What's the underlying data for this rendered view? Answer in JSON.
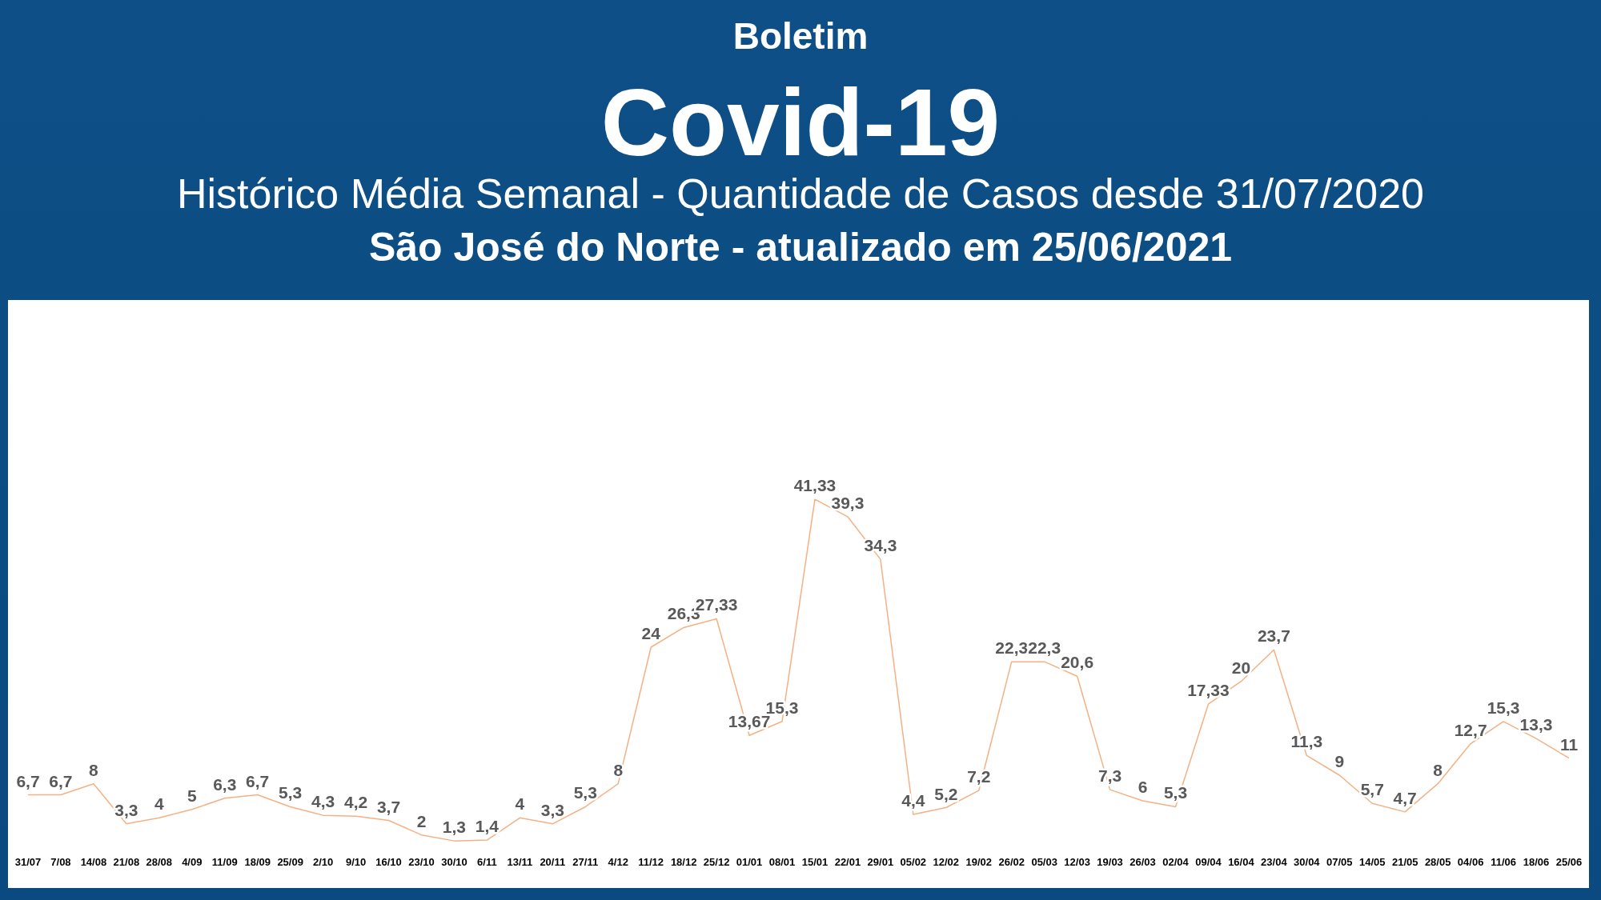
{
  "chart_data": {
    "type": "line",
    "title": "Covid-19",
    "subtitle": "Histórico Média Semanal - Quantidade de Casos desde 31/07/2020",
    "annotations": [
      "Boletim",
      "São José do Norte - atualizado em 25/06/2021"
    ],
    "categories": [
      "31/07",
      "7/08",
      "14/08",
      "21/08",
      "28/08",
      "4/09",
      "11/09",
      "18/09",
      "25/09",
      "2/10",
      "9/10",
      "16/10",
      "23/10",
      "30/10",
      "6/11",
      "13/11",
      "20/11",
      "27/11",
      "4/12",
      "11/12",
      "18/12",
      "25/12",
      "01/01",
      "08/01",
      "15/01",
      "22/01",
      "29/01",
      "05/02",
      "12/02",
      "19/02",
      "26/02",
      "05/03",
      "12/03",
      "19/03",
      "26/03",
      "02/04",
      "09/04",
      "16/04",
      "23/04",
      "30/04",
      "07/05",
      "14/05",
      "21/05",
      "28/05",
      "04/06",
      "11/06",
      "18/06",
      "25/06"
    ],
    "series": [
      {
        "color": "#f4b183",
        "values": [
          6.7,
          6.7,
          8,
          3.3,
          4,
          5,
          6.3,
          6.7,
          5.3,
          4.3,
          4.2,
          3.7,
          2,
          1.3,
          1.4,
          4,
          3.3,
          5.3,
          8,
          24,
          26.3,
          27.33,
          13.67,
          15.3,
          41.33,
          39.3,
          34.3,
          4.4,
          5.2,
          7.2,
          22.3,
          22.3,
          20.6,
          7.3,
          6,
          5.3,
          17.33,
          20,
          23.7,
          11.3,
          9,
          5.7,
          4.7,
          8,
          12.7,
          15.3,
          13.3,
          11
        ],
        "value_labels": [
          "6,7",
          "6,7",
          "8",
          "3,3",
          "4",
          "5",
          "6,3",
          "6,7",
          "5,3",
          "4,3",
          "4,2",
          "3,7",
          "2",
          "1,3",
          "1,4",
          "4",
          "3,3",
          "5,3",
          "8",
          "24",
          "26,3",
          "27,33",
          "13,67",
          "15,3",
          "41,33",
          "39,3",
          "34,3",
          "4,4",
          "5,2",
          "7,2",
          "22,3",
          "22,3",
          "20,6",
          "7,3",
          "6",
          "5,3",
          "17,33",
          "20",
          "23,7",
          "11,3",
          "9",
          "5,7",
          "4,7",
          "8",
          "12,7",
          "15,3",
          "13,3",
          "11"
        ]
      }
    ],
    "marker": "none",
    "line_style": "solid",
    "grid": false,
    "legend": false
  }
}
